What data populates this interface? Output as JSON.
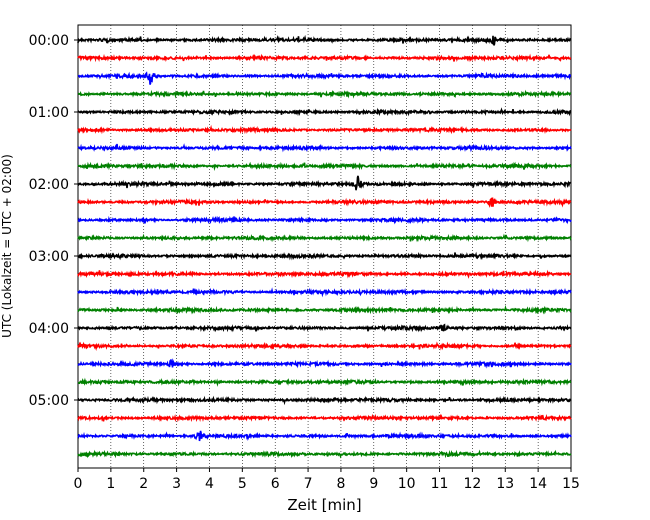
{
  "chart_data": {
    "type": "line",
    "title": "",
    "xlabel": "Zeit  [min]",
    "ylabel": "UTC (Lokalzeit = UTC + 02:00)",
    "xlim": [
      0,
      15
    ],
    "x_ticks": [
      "0",
      "1",
      "2",
      "3",
      "4",
      "5",
      "6",
      "7",
      "8",
      "9",
      "10",
      "11",
      "12",
      "13",
      "14",
      "15"
    ],
    "y_tick_labels": [
      "00:00",
      "01:00",
      "02:00",
      "03:00",
      "04:00",
      "05:00"
    ],
    "y_tick_hours": [
      0,
      1,
      2,
      3,
      4,
      5
    ],
    "trace_interval_minutes": 15,
    "trace_count": 24,
    "trace_colors": [
      "#000000",
      "#ff0000",
      "#0000ff",
      "#008000"
    ],
    "grid": "vertical dotted lines at every minute",
    "events": [
      {
        "trace": 0,
        "minute": 12.65,
        "amplitude": 0.5
      },
      {
        "trace": 2,
        "minute": 2.2,
        "amplitude": 0.9
      },
      {
        "trace": 8,
        "minute": 8.5,
        "amplitude": 1.0
      },
      {
        "trace": 9,
        "minute": 12.6,
        "amplitude": 0.8
      },
      {
        "trace": 16,
        "minute": 11.1,
        "amplitude": 0.5
      },
      {
        "trace": 18,
        "minute": 2.85,
        "amplitude": 0.6
      },
      {
        "trace": 22,
        "minute": 3.7,
        "amplitude": 0.7
      }
    ]
  }
}
